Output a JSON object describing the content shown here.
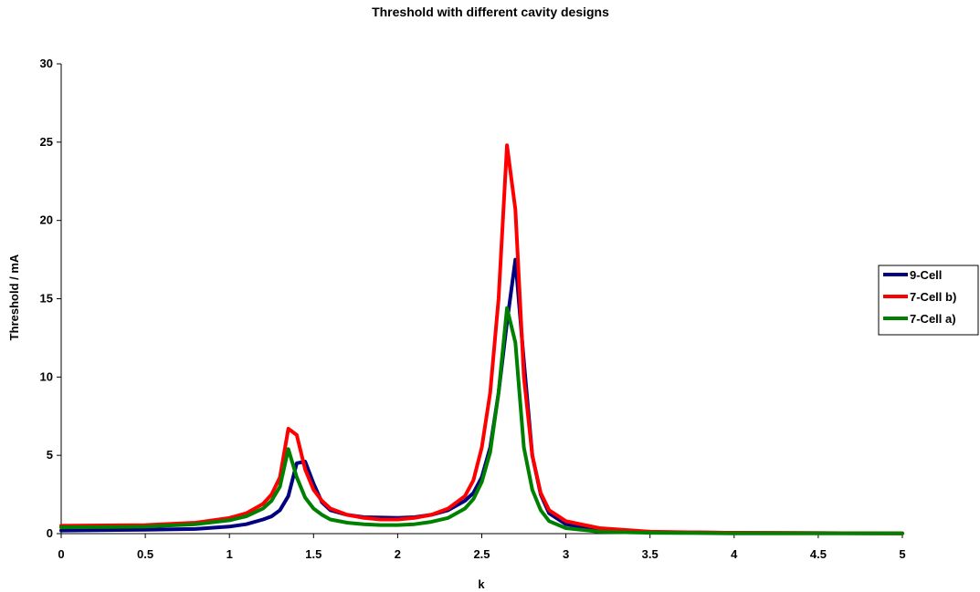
{
  "chart_data": {
    "type": "line",
    "title": "Threshold with different cavity designs",
    "xlabel": "k",
    "ylabel": "Threshold / mA",
    "xlim": [
      0,
      5
    ],
    "ylim": [
      0,
      30
    ],
    "xticks": [
      "0",
      "0.5",
      "1",
      "1.5",
      "2",
      "2.5",
      "3",
      "3.5",
      "4",
      "4.5",
      "5"
    ],
    "yticks": [
      "0",
      "5",
      "10",
      "15",
      "20",
      "25",
      "30"
    ],
    "grid": false,
    "legend_position": "right",
    "series": [
      {
        "name": "9-Cell",
        "color": "#000080",
        "points": [
          [
            0,
            0.2
          ],
          [
            0.5,
            0.25
          ],
          [
            0.8,
            0.3
          ],
          [
            1.0,
            0.45
          ],
          [
            1.1,
            0.6
          ],
          [
            1.2,
            0.9
          ],
          [
            1.25,
            1.1
          ],
          [
            1.3,
            1.5
          ],
          [
            1.35,
            2.4
          ],
          [
            1.4,
            4.5
          ],
          [
            1.45,
            4.6
          ],
          [
            1.5,
            3.2
          ],
          [
            1.55,
            2.0
          ],
          [
            1.6,
            1.5
          ],
          [
            1.7,
            1.2
          ],
          [
            1.8,
            1.05
          ],
          [
            2.0,
            1.0
          ],
          [
            2.1,
            1.05
          ],
          [
            2.2,
            1.2
          ],
          [
            2.3,
            1.5
          ],
          [
            2.4,
            2.1
          ],
          [
            2.45,
            2.6
          ],
          [
            2.5,
            3.6
          ],
          [
            2.55,
            5.5
          ],
          [
            2.6,
            9.0
          ],
          [
            2.65,
            13.5
          ],
          [
            2.7,
            17.5
          ],
          [
            2.75,
            11.0
          ],
          [
            2.8,
            5.0
          ],
          [
            2.85,
            2.5
          ],
          [
            2.9,
            1.3
          ],
          [
            3.0,
            0.6
          ],
          [
            3.2,
            0.25
          ],
          [
            3.5,
            0.1
          ],
          [
            4.0,
            0.05
          ],
          [
            5.0,
            0.02
          ]
        ]
      },
      {
        "name": "7-Cell b)",
        "color": "#ff0000",
        "points": [
          [
            0,
            0.5
          ],
          [
            0.5,
            0.55
          ],
          [
            0.8,
            0.7
          ],
          [
            1.0,
            1.0
          ],
          [
            1.1,
            1.3
          ],
          [
            1.2,
            1.9
          ],
          [
            1.25,
            2.5
          ],
          [
            1.3,
            3.6
          ],
          [
            1.35,
            6.7
          ],
          [
            1.4,
            6.3
          ],
          [
            1.45,
            4.1
          ],
          [
            1.5,
            2.8
          ],
          [
            1.55,
            2.1
          ],
          [
            1.6,
            1.6
          ],
          [
            1.7,
            1.2
          ],
          [
            1.8,
            1.0
          ],
          [
            1.9,
            0.9
          ],
          [
            2.0,
            0.9
          ],
          [
            2.1,
            1.0
          ],
          [
            2.2,
            1.2
          ],
          [
            2.3,
            1.6
          ],
          [
            2.4,
            2.4
          ],
          [
            2.45,
            3.4
          ],
          [
            2.5,
            5.5
          ],
          [
            2.55,
            9.0
          ],
          [
            2.6,
            15.0
          ],
          [
            2.65,
            24.8
          ],
          [
            2.7,
            20.7
          ],
          [
            2.75,
            10.0
          ],
          [
            2.8,
            5.0
          ],
          [
            2.85,
            2.6
          ],
          [
            2.9,
            1.5
          ],
          [
            3.0,
            0.8
          ],
          [
            3.2,
            0.35
          ],
          [
            3.5,
            0.12
          ],
          [
            4.0,
            0.05
          ],
          [
            5.0,
            0.02
          ]
        ]
      },
      {
        "name": "7-Cell a)",
        "color": "#008000",
        "points": [
          [
            0,
            0.4
          ],
          [
            0.5,
            0.45
          ],
          [
            0.8,
            0.6
          ],
          [
            1.0,
            0.85
          ],
          [
            1.1,
            1.1
          ],
          [
            1.2,
            1.6
          ],
          [
            1.25,
            2.1
          ],
          [
            1.3,
            3.0
          ],
          [
            1.35,
            5.4
          ],
          [
            1.4,
            3.6
          ],
          [
            1.45,
            2.3
          ],
          [
            1.5,
            1.6
          ],
          [
            1.55,
            1.2
          ],
          [
            1.6,
            0.9
          ],
          [
            1.7,
            0.7
          ],
          [
            1.8,
            0.6
          ],
          [
            1.9,
            0.55
          ],
          [
            2.0,
            0.55
          ],
          [
            2.1,
            0.6
          ],
          [
            2.2,
            0.75
          ],
          [
            2.3,
            1.0
          ],
          [
            2.4,
            1.6
          ],
          [
            2.45,
            2.2
          ],
          [
            2.5,
            3.3
          ],
          [
            2.55,
            5.2
          ],
          [
            2.6,
            9.0
          ],
          [
            2.65,
            14.4
          ],
          [
            2.7,
            12.2
          ],
          [
            2.75,
            5.5
          ],
          [
            2.8,
            2.8
          ],
          [
            2.85,
            1.5
          ],
          [
            2.9,
            0.8
          ],
          [
            3.0,
            0.35
          ],
          [
            3.2,
            0.12
          ],
          [
            3.5,
            0.05
          ],
          [
            4.0,
            0.02
          ],
          [
            5.0,
            0.01
          ]
        ]
      }
    ]
  }
}
